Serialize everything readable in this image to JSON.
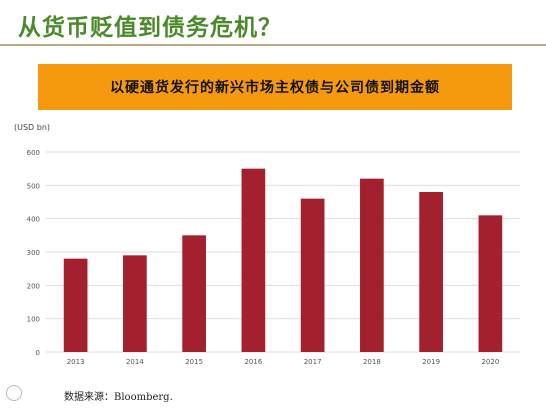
{
  "slide": {
    "title": "从货币贬值到债务危机？",
    "banner": "以硬通货发行的新兴市场主权债与公司债到期金额",
    "source": "数据来源：Bloomberg."
  },
  "colors": {
    "bar": "#a3202f",
    "banner": "#f59a0e",
    "title": "#4b8a2b",
    "grid": "#dddddd"
  },
  "chart_data": {
    "type": "bar",
    "categories": [
      "2013",
      "2014",
      "2015",
      "2016",
      "2017",
      "2018",
      "2019",
      "2020"
    ],
    "values": [
      280,
      290,
      350,
      550,
      460,
      520,
      480,
      410
    ],
    "ylabel": "(USD bn)",
    "ylim": [
      0,
      600
    ],
    "yticks": [
      0,
      100,
      200,
      300,
      400,
      500,
      600
    ],
    "grid": true
  }
}
